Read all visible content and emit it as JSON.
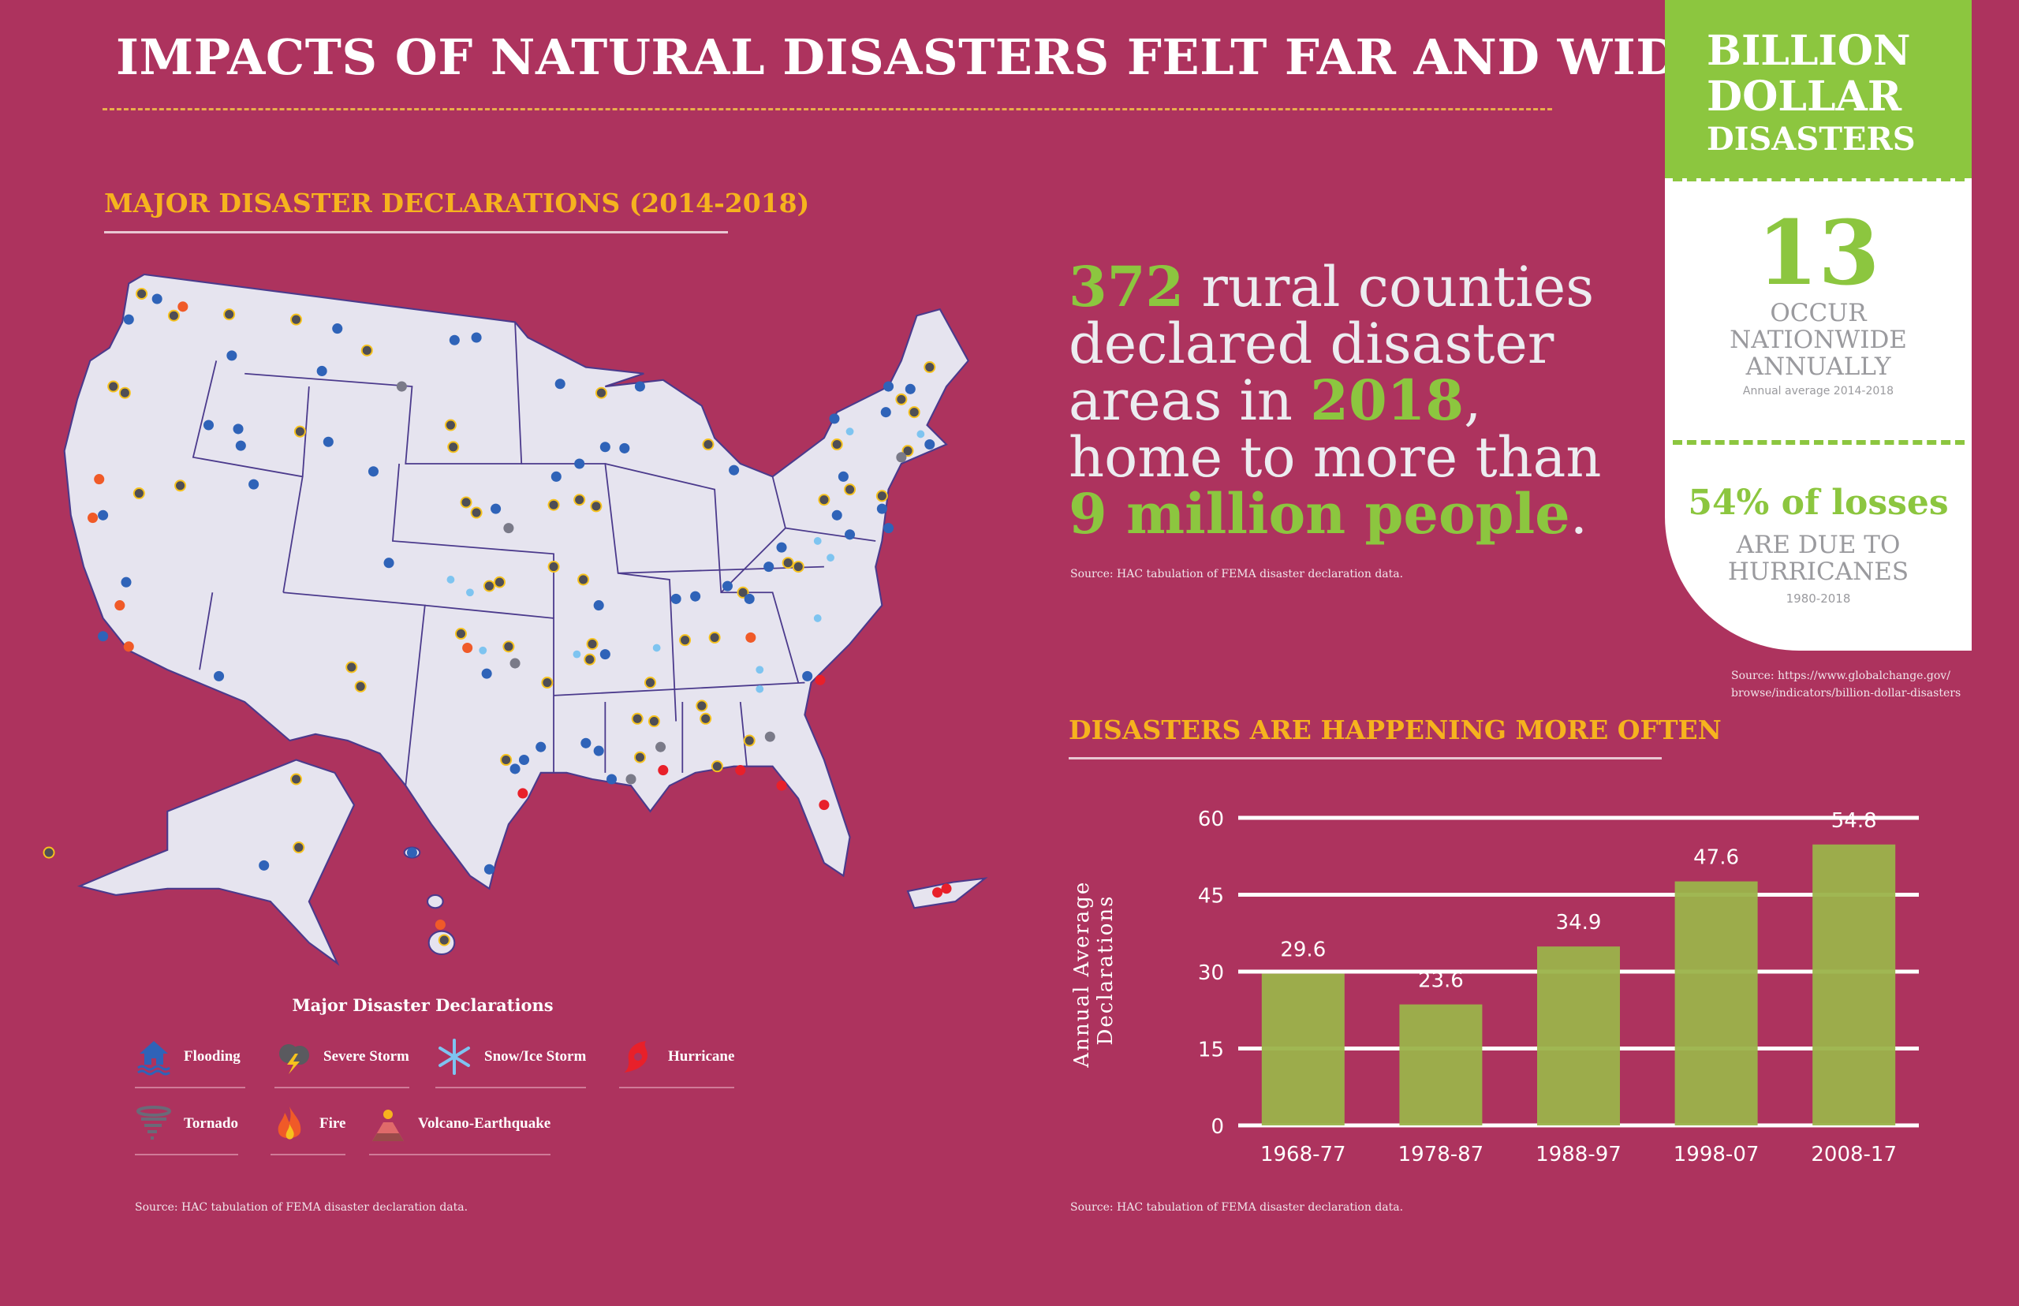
{
  "title": "IMPACTS OF NATURAL DISASTERS FELT FAR AND WIDE",
  "map_section": {
    "heading": "MAJOR DISASTER DECLARATIONS (2014-2018)",
    "legend_title": "Major Disaster Declarations",
    "legend": [
      {
        "label": "Flooding",
        "icon": "flooding-house-icon",
        "color": "#2f63b8"
      },
      {
        "label": "Severe Storm",
        "icon": "storm-cloud-lightning-icon",
        "color": "#5a5a5f"
      },
      {
        "label": "Snow/Ice Storm",
        "icon": "snowflake-icon",
        "color": "#7ec4f0"
      },
      {
        "label": "Hurricane",
        "icon": "hurricane-icon",
        "color": "#e8202a"
      },
      {
        "label": "Tornado",
        "icon": "tornado-icon",
        "color": "#6a6a78"
      },
      {
        "label": "Fire",
        "icon": "fire-icon",
        "color": "#f05a28"
      },
      {
        "label": "Volcano-Earthquake",
        "icon": "volcano-icon",
        "color": "#e06a6a"
      }
    ],
    "source": "Source: HAC tabulation of FEMA disaster declaration data."
  },
  "headline": {
    "n1": "372",
    "t1": " rural counties",
    "t2": "declared disaster",
    "t3": "areas in ",
    "n2": "2018",
    "t4": ",",
    "t5": "home to more than",
    "n3": "9 million people",
    "t6": ".",
    "source": "Source: HAC tabulation of FEMA disaster declaration data."
  },
  "billion_panel": {
    "title_l1": "BILLION",
    "title_l2": "DOLLAR",
    "title_l3": "DISASTERS",
    "stat1_value": "13",
    "stat1_l1": "OCCUR",
    "stat1_l2": "NATIONWIDE",
    "stat1_l3": "ANNUALLY",
    "stat1_note": "Annual average 2014-2018",
    "stat2_value": "54% of losses",
    "stat2_l1": "ARE DUE TO",
    "stat2_l2": "HURRICANES",
    "stat2_note": "1980-2018",
    "source_l1": "Source: https://www.globalchange.gov/",
    "source_l2": "browse/indicators/billion-dollar-disasters",
    "accent": "#8cc63f"
  },
  "chart_section": {
    "heading": "DISASTERS ARE HAPPENING MORE OFTEN",
    "source": "Source: HAC tabulation of FEMA disaster declaration data."
  },
  "chart_data": {
    "type": "bar",
    "categories": [
      "1968-77",
      "1978-87",
      "1988-97",
      "1998-07",
      "2008-17"
    ],
    "values": [
      29.6,
      23.6,
      34.9,
      47.6,
      54.8
    ],
    "data_labels": [
      "29.6",
      "23.6",
      "34.9",
      "47.6",
      "54.8"
    ],
    "title": "DISASTERS ARE HAPPENING MORE OFTEN",
    "xlabel": "",
    "ylabel_l1": "Annual Average",
    "ylabel_l2": "Declarations",
    "ylim": [
      0,
      60
    ],
    "yticks": [
      0,
      15,
      30,
      45,
      60
    ],
    "grid": true,
    "bar_color": "#9bb34a",
    "grid_color": "#ffffff"
  },
  "colors": {
    "background": "#ad335e",
    "heading": "#f6b31e",
    "green": "#8cc63f",
    "map_fill": "#e6e4ef",
    "map_border": "#4b3a8c"
  }
}
